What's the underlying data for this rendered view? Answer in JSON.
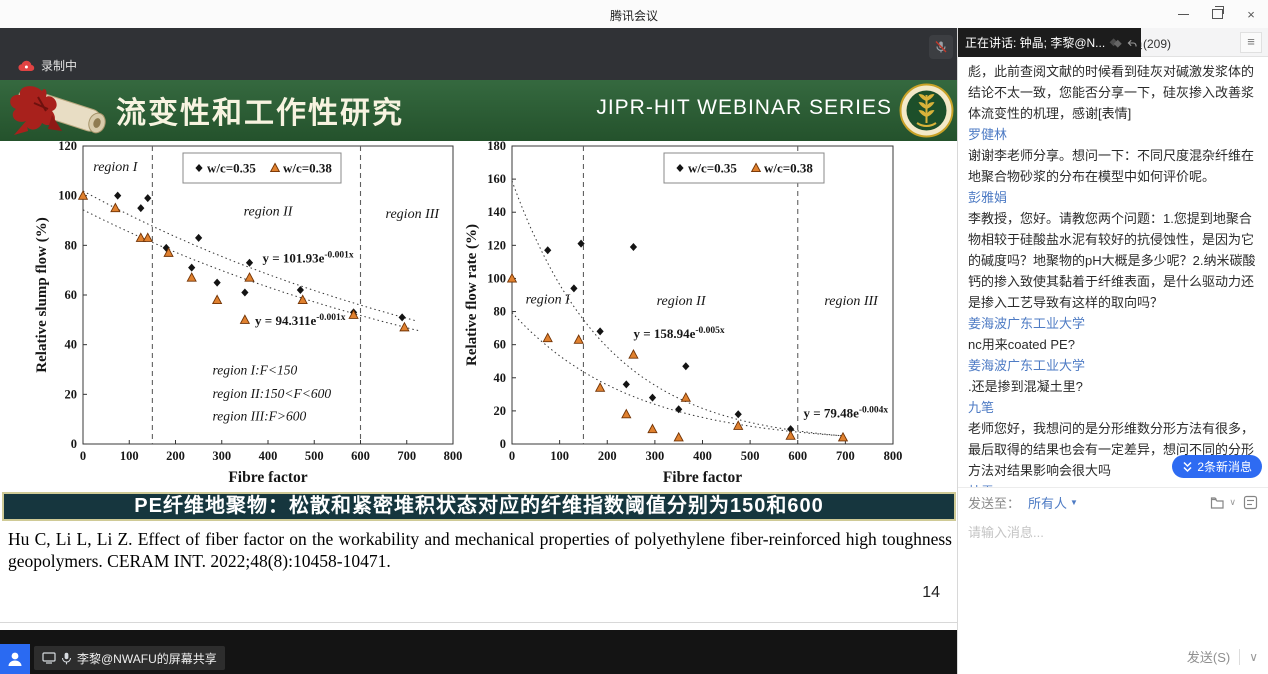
{
  "app": {
    "title": "腾讯会议",
    "close_glyph": "×"
  },
  "meeting": {
    "recording_label": "录制中",
    "speaking_tooltip": "正在讲话: 钟晶; 李黎@N...",
    "share_label": "李黎@NWAFU的屏幕共享"
  },
  "slide": {
    "header": {
      "title": "流变性和工作性研究",
      "series": "JIPR-HIT WEBINAR SERIES"
    },
    "banner": "PE纤维地聚物：松散和紧密堆积状态对应的纤维指数阈值分别为150和600",
    "citation": "Hu C, Li L, Li Z. Effect of fiber factor on the workability and mechanical properties of polyethylene fiber-reinforced high toughness geopolymers. CERAM INT. 2022;48(8):10458-10471.",
    "page_number": "14"
  },
  "chart_data": [
    {
      "type": "scatter",
      "title": "",
      "xlabel": "Fibre factor",
      "ylabel": "Relative slump flow (%)",
      "xlim": [
        0,
        800
      ],
      "ylim": [
        0,
        120
      ],
      "xtick_step": 100,
      "ytick_step": 20,
      "grid": false,
      "legend_position": "top",
      "dashed_x": [
        150,
        600
      ],
      "legend": [
        {
          "marker": "diamond",
          "label": "w/c=0.35"
        },
        {
          "marker": "triangle",
          "label": "w/c=0.38"
        }
      ],
      "series": [
        {
          "name": "w/c=0.35",
          "marker": "diamond",
          "color": "#141414",
          "points": [
            [
              75,
              100
            ],
            [
              125,
              95
            ],
            [
              140,
              99
            ],
            [
              180,
              79
            ],
            [
              235,
              71
            ],
            [
              250,
              83
            ],
            [
              290,
              65
            ],
            [
              350,
              61
            ],
            [
              360,
              73
            ],
            [
              470,
              62
            ],
            [
              585,
              53
            ],
            [
              690,
              51
            ]
          ],
          "fit": {
            "a": 101.93,
            "b": -0.001,
            "range": [
              0,
              720
            ]
          }
        },
        {
          "name": "w/c=0.38",
          "marker": "triangle",
          "color": "#e0812f",
          "points": [
            [
              0,
              100
            ],
            [
              70,
              95
            ],
            [
              125,
              83
            ],
            [
              140,
              83
            ],
            [
              185,
              77
            ],
            [
              235,
              67
            ],
            [
              290,
              58
            ],
            [
              350,
              50
            ],
            [
              360,
              67
            ],
            [
              475,
              58
            ],
            [
              585,
              52
            ],
            [
              695,
              47
            ]
          ],
          "fit": {
            "a": 94.311,
            "b": -0.001,
            "range": [
              0,
              735
            ]
          }
        }
      ],
      "equations": [
        {
          "base": "y = 101.93e",
          "exp": "-0.001x",
          "x": 388,
          "y": 73
        },
        {
          "base": "y = 94.311e",
          "exp": "-0.001x",
          "x": 372,
          "y": 48
        }
      ],
      "region_labels": [
        {
          "text": "region I",
          "x": 70,
          "y": 110
        },
        {
          "text": "region II",
          "x": 400,
          "y": 92
        },
        {
          "text": "region III",
          "x": 712,
          "y": 91
        }
      ],
      "notes": [
        {
          "text": "region I:F<150",
          "x": 280,
          "y": 28
        },
        {
          "text": "region II:150<F<600",
          "x": 280,
          "y": 18.5
        },
        {
          "text": "region III:F>600",
          "x": 280,
          "y": 9.5
        }
      ]
    },
    {
      "type": "scatter",
      "title": "",
      "xlabel": "Fibre factor",
      "ylabel": "Relative flow rate (%)",
      "xlim": [
        0,
        800
      ],
      "ylim": [
        0,
        180
      ],
      "xtick_step": 100,
      "ytick_step": 20,
      "grid": false,
      "legend_position": "top",
      "dashed_x": [
        150,
        600
      ],
      "legend": [
        {
          "marker": "diamond",
          "label": "w/c=0.35"
        },
        {
          "marker": "triangle",
          "label": "w/c=0.38"
        }
      ],
      "series": [
        {
          "name": "w/c=0.35",
          "marker": "diamond",
          "color": "#141414",
          "points": [
            [
              75,
              117
            ],
            [
              130,
              94
            ],
            [
              145,
              121
            ],
            [
              185,
              68
            ],
            [
              240,
              36
            ],
            [
              255,
              119
            ],
            [
              295,
              28
            ],
            [
              350,
              21
            ],
            [
              365,
              47
            ],
            [
              475,
              18
            ],
            [
              585,
              9
            ]
          ],
          "fit": {
            "a": 158.94,
            "b": -0.005,
            "range": [
              0,
              700
            ]
          }
        },
        {
          "name": "w/c=0.38",
          "marker": "triangle",
          "color": "#e0812f",
          "points": [
            [
              0,
              100
            ],
            [
              75,
              64
            ],
            [
              140,
              63
            ],
            [
              185,
              34
            ],
            [
              240,
              18
            ],
            [
              255,
              54
            ],
            [
              295,
              9
            ],
            [
              350,
              4
            ],
            [
              365,
              28
            ],
            [
              475,
              11
            ],
            [
              585,
              5
            ],
            [
              695,
              4
            ]
          ],
          "fit": {
            "a": 79.48,
            "b": -0.004,
            "range": [
              0,
              700
            ]
          }
        }
      ],
      "equations": [
        {
          "base": "y = 158.94e",
          "exp": "-0.005x",
          "x": 255,
          "y": 64
        },
        {
          "base": "y = 79.48e",
          "exp": "-0.004x",
          "x": 612,
          "y": 16
        }
      ],
      "region_labels": [
        {
          "text": "region I",
          "x": 75,
          "y": 85
        },
        {
          "text": "region II",
          "x": 355,
          "y": 84
        },
        {
          "text": "region III",
          "x": 712,
          "y": 84
        }
      ],
      "notes": []
    }
  ],
  "chat": {
    "tab_label": "员(209)",
    "menu_icon": "≡",
    "messages": [
      {
        "name": "",
        "text": "彪，此前查阅文献的时候看到硅灰对碱激发浆体的结论不太一致，您能否分享一下，硅灰掺入改善浆体流变性的机理，感谢[表情]"
      },
      {
        "name": "罗健林",
        "text": "谢谢李老师分享。想问一下：不同尺度混杂纤维在地聚合物砂浆的分布在模型中如何评价呢。"
      },
      {
        "name": "彭雅娟",
        "text": "李教授，您好。请教您两个问题：1.您提到地聚合物相较于硅酸盐水泥有较好的抗侵蚀性，是因为它的碱度吗？地聚物的pH大概是多少呢？2.纳米碳酸钙的掺入致使其黏着于纤维表面，是什么驱动力还是掺入工艺导致有这样的取向吗？"
      },
      {
        "name": "姜海波广东工业大学",
        "text": "nc用来coated PE?"
      },
      {
        "name": "姜海波广东工业大学",
        "text": ".还是掺到混凝土里?"
      },
      {
        "name": "九笔",
        "text": "老师您好，我想问的是分形维数分形方法有很多，最后取得的结果也会有一定差异，想问不同的分形方法对结果影响会很大吗"
      },
      {
        "name": "杜雪",
        "clipped": true
      }
    ],
    "new_messages": "2条新消息",
    "send_to_label": "发送至：",
    "send_to_value": "所有人",
    "send_to_caret": "▼",
    "input_placeholder": "请输入消息...",
    "send_button": "发送(S)",
    "send_caret": "∨"
  }
}
